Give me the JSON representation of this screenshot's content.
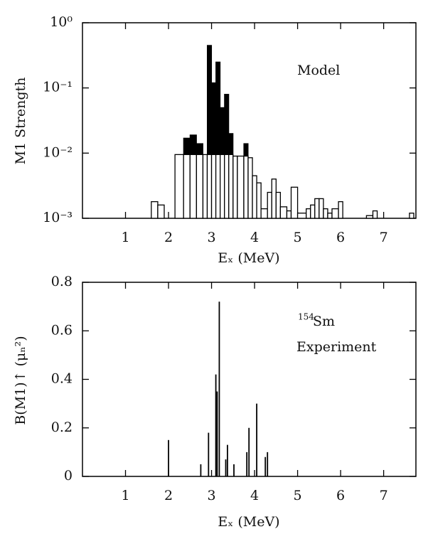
{
  "chart_data": [
    {
      "type": "histogram",
      "y_label": "M1 Strength",
      "x_label": "Eₓ (MeV)",
      "annotation": "Model",
      "log_y": true,
      "color": "#000000",
      "xlim": [
        0,
        7.75
      ],
      "xticks": [
        1,
        2,
        3,
        4,
        5,
        6,
        7
      ],
      "ylim": [
        0.001,
        1
      ],
      "yticks": [
        {
          "value": 1,
          "label": "10⁰"
        },
        {
          "value": 0.1,
          "label": "10⁻¹"
        },
        {
          "value": 0.01,
          "label": "10⁻²"
        },
        {
          "value": 0.001,
          "label": "10⁻³"
        }
      ],
      "bins": [
        1.6,
        1.75,
        1.9,
        2.15,
        2.35,
        2.5,
        2.65,
        2.8,
        2.9,
        3.0,
        3.1,
        3.2,
        3.3,
        3.4,
        3.5,
        3.6,
        3.75,
        3.85,
        3.95,
        4.05,
        4.15,
        4.3,
        4.4,
        4.5,
        4.6,
        4.75,
        4.85,
        5.0,
        5.2,
        5.3,
        5.4,
        5.5,
        5.6,
        5.7,
        5.8,
        5.95,
        6.05,
        6.6,
        6.75,
        6.85,
        7.6,
        7.7
      ],
      "values": [
        0.0018,
        0.0016,
        null,
        0.0095,
        0.0095,
        0.0095,
        0.0095,
        0.0095,
        0.0095,
        0.0095,
        0.0095,
        0.0095,
        0.0095,
        0.0095,
        0.009,
        0.009,
        0.009,
        0.0085,
        0.0045,
        0.0035,
        0.0014,
        0.0025,
        0.004,
        0.0025,
        0.0015,
        0.0013,
        0.003,
        0.0012,
        0.0014,
        0.0016,
        0.002,
        0.002,
        0.0014,
        0.0012,
        0.0014,
        0.0018,
        null,
        0.0011,
        0.0013,
        null,
        0.0012
      ],
      "filled_values": [
        null,
        null,
        null,
        null,
        0.017,
        0.019,
        0.014,
        null,
        0.45,
        0.12,
        0.25,
        0.05,
        0.08,
        0.02,
        null,
        null,
        0.014,
        null,
        null,
        null,
        null,
        null,
        null,
        null,
        null,
        null,
        null,
        null,
        null,
        null,
        null,
        null,
        null,
        null,
        null,
        null,
        null,
        null,
        null,
        null,
        null
      ]
    },
    {
      "type": "stick",
      "y_label": "B(M1)↑ (μₙ²)",
      "x_label": "Eₓ (MeV)",
      "annotations": [
        "154",
        "Sm",
        "Experiment"
      ],
      "color": "#000000",
      "xlim": [
        0,
        7.75
      ],
      "xticks": [
        1,
        2,
        3,
        4,
        5,
        6,
        7
      ],
      "ylim": [
        0,
        0.8
      ],
      "yticks": [
        0,
        0.2,
        0.4,
        0.6,
        0.8
      ],
      "x": [
        2.0,
        2.75,
        2.93,
        3.1,
        3.13,
        3.18,
        3.33,
        3.37,
        3.52,
        3.82,
        3.87,
        4.05,
        4.25,
        4.3
      ],
      "values": [
        0.15,
        0.05,
        0.18,
        0.42,
        0.35,
        0.72,
        0.07,
        0.13,
        0.05,
        0.1,
        0.2,
        0.3,
        0.08,
        0.1
      ]
    }
  ]
}
